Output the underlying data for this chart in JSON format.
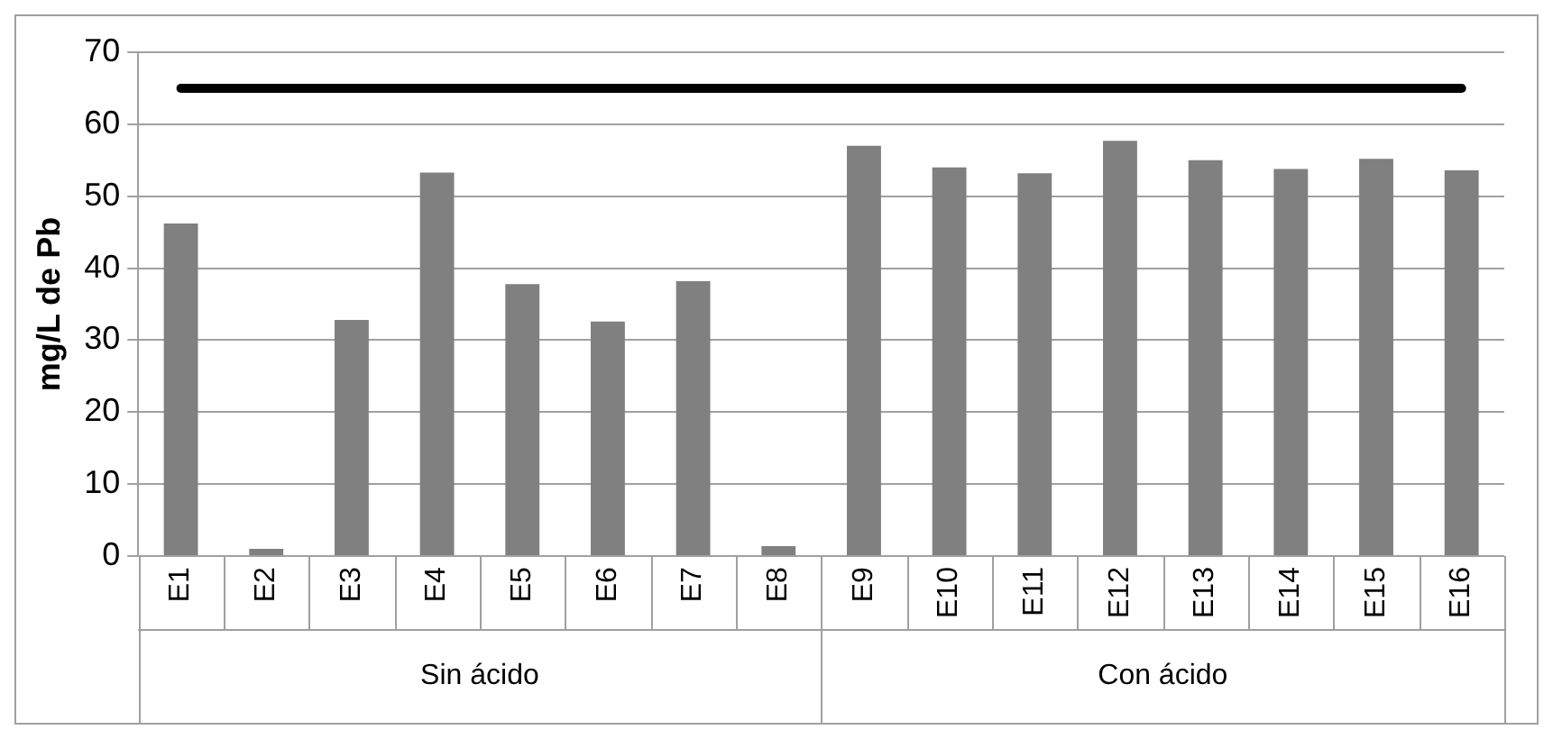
{
  "chart_data": {
    "type": "bar",
    "ylabel": "mg/L de Pb",
    "categories": [
      "E1",
      "E2",
      "E3",
      "E4",
      "E5",
      "E6",
      "E7",
      "E8",
      "E9",
      "E10",
      "E11",
      "E12",
      "E13",
      "E14",
      "E15",
      "E16"
    ],
    "series": [
      {
        "color": "#808080",
        "values": [
          46.2,
          1.0,
          32.8,
          53.3,
          37.8,
          32.6,
          38.2,
          1.4,
          57.0,
          54.0,
          53.2,
          57.7,
          55.0,
          53.8,
          55.2,
          53.6
        ]
      },
      {
        "type": "line",
        "color": "#000000",
        "marker": "none",
        "line_style": "solid",
        "values": [
          65,
          65,
          65,
          65,
          65,
          65,
          65,
          65,
          65,
          65,
          65,
          65,
          65,
          65,
          65,
          65
        ]
      }
    ],
    "annotations": [
      "Sin ácido",
      "Con ácido"
    ],
    "ylim": [
      0,
      70
    ],
    "yticks": [
      0,
      10,
      20,
      30,
      40,
      50,
      60,
      70
    ],
    "grid": "y",
    "legend": false
  }
}
